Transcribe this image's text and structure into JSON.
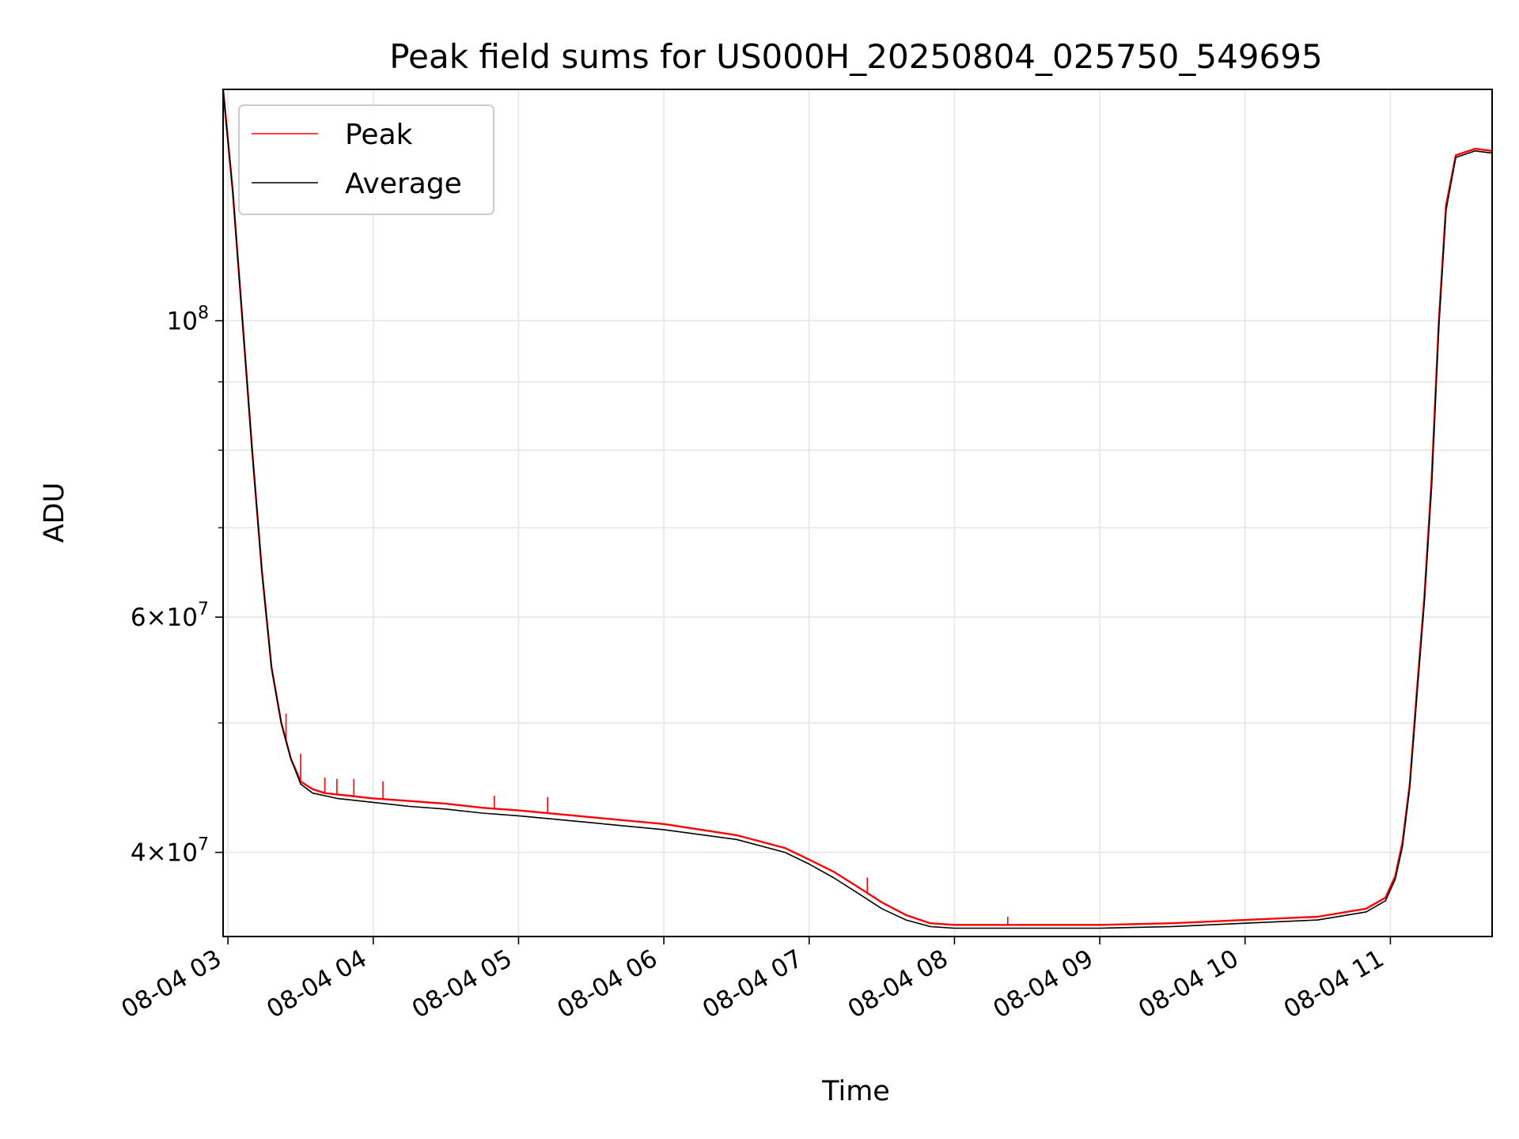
{
  "chart_data": {
    "type": "line",
    "title": "Peak field sums for US000H_20250804_025750_549695",
    "xlabel": "Time",
    "ylabel": "ADU",
    "yscale": "log",
    "grid": true,
    "legend_position": "top-left",
    "xlim": [
      "2025-08-04 02:58",
      "2025-08-04 11:42"
    ],
    "ylim": [
      34600000,
      149000000
    ],
    "x_ticks": [
      {
        "value": "2025-08-04 03:00",
        "label": "08-04 03"
      },
      {
        "value": "2025-08-04 04:00",
        "label": "08-04 04"
      },
      {
        "value": "2025-08-04 05:00",
        "label": "08-04 05"
      },
      {
        "value": "2025-08-04 06:00",
        "label": "08-04 06"
      },
      {
        "value": "2025-08-04 07:00",
        "label": "08-04 07"
      },
      {
        "value": "2025-08-04 08:00",
        "label": "08-04 08"
      },
      {
        "value": "2025-08-04 09:00",
        "label": "08-04 09"
      },
      {
        "value": "2025-08-04 10:00",
        "label": "08-04 10"
      },
      {
        "value": "2025-08-04 11:00",
        "label": "08-04 11"
      }
    ],
    "y_major_ticks": [
      {
        "value": 40000000,
        "mant": "4",
        "exp": "7"
      },
      {
        "value": 60000000,
        "mant": "6",
        "exp": "7"
      },
      {
        "value": 100000000,
        "mant": "",
        "exp": "8"
      }
    ],
    "y_minor_ticks": [
      50000000,
      70000000,
      80000000,
      90000000
    ],
    "series": [
      {
        "name": "Peak",
        "color": "#ff0000",
        "x": [
          "2025-08-04 02:58",
          "2025-08-04 03:02",
          "2025-08-04 03:06",
          "2025-08-04 03:10",
          "2025-08-04 03:14",
          "2025-08-04 03:18",
          "2025-08-04 03:22",
          "2025-08-04 03:26",
          "2025-08-04 03:30",
          "2025-08-04 03:35",
          "2025-08-04 03:40",
          "2025-08-04 03:45",
          "2025-08-04 03:50",
          "2025-08-04 04:00",
          "2025-08-04 04:15",
          "2025-08-04 04:30",
          "2025-08-04 04:45",
          "2025-08-04 05:00",
          "2025-08-04 05:30",
          "2025-08-04 06:00",
          "2025-08-04 06:30",
          "2025-08-04 06:50",
          "2025-08-04 07:00",
          "2025-08-04 07:10",
          "2025-08-04 07:20",
          "2025-08-04 07:30",
          "2025-08-04 07:40",
          "2025-08-04 07:50",
          "2025-08-04 08:00",
          "2025-08-04 08:30",
          "2025-08-04 09:00",
          "2025-08-04 09:30",
          "2025-08-04 10:00",
          "2025-08-04 10:30",
          "2025-08-04 10:50",
          "2025-08-04 10:58",
          "2025-08-04 11:02",
          "2025-08-04 11:05",
          "2025-08-04 11:08",
          "2025-08-04 11:11",
          "2025-08-04 11:14",
          "2025-08-04 11:17",
          "2025-08-04 11:20",
          "2025-08-04 11:23",
          "2025-08-04 11:27",
          "2025-08-04 11:35",
          "2025-08-04 11:42"
        ],
        "y": [
          149000000,
          125000000,
          100000000,
          80000000,
          65000000,
          55000000,
          50000000,
          47000000,
          45200000,
          44600000,
          44300000,
          44200000,
          44100000,
          43900000,
          43700000,
          43500000,
          43200000,
          43000000,
          42500000,
          42000000,
          41200000,
          40300000,
          39500000,
          38700000,
          37700000,
          36700000,
          35900000,
          35400000,
          35300000,
          35300000,
          35300000,
          35400000,
          35600000,
          35800000,
          36300000,
          37000000,
          38400000,
          40700000,
          45000000,
          53000000,
          62000000,
          76000000,
          100000000,
          122000000,
          133000000,
          134500000,
          134000000
        ],
        "spikes": [
          {
            "x": "2025-08-04 03:24",
            "y": 50800000
          },
          {
            "x": "2025-08-04 03:30",
            "y": 47400000
          },
          {
            "x": "2025-08-04 03:40",
            "y": 45500000
          },
          {
            "x": "2025-08-04 03:45",
            "y": 45400000
          },
          {
            "x": "2025-08-04 03:52",
            "y": 45400000
          },
          {
            "x": "2025-08-04 04:04",
            "y": 45200000
          },
          {
            "x": "2025-08-04 04:50",
            "y": 44100000
          },
          {
            "x": "2025-08-04 05:12",
            "y": 44000000
          },
          {
            "x": "2025-08-04 07:24",
            "y": 38300000
          },
          {
            "x": "2025-08-04 08:22",
            "y": 35800000
          }
        ]
      },
      {
        "name": "Average",
        "color": "#000000",
        "x": [
          "2025-08-04 02:58",
          "2025-08-04 03:02",
          "2025-08-04 03:06",
          "2025-08-04 03:10",
          "2025-08-04 03:14",
          "2025-08-04 03:18",
          "2025-08-04 03:22",
          "2025-08-04 03:26",
          "2025-08-04 03:30",
          "2025-08-04 03:35",
          "2025-08-04 03:40",
          "2025-08-04 03:45",
          "2025-08-04 03:50",
          "2025-08-04 04:00",
          "2025-08-04 04:15",
          "2025-08-04 04:30",
          "2025-08-04 04:45",
          "2025-08-04 05:00",
          "2025-08-04 05:30",
          "2025-08-04 06:00",
          "2025-08-04 06:30",
          "2025-08-04 06:50",
          "2025-08-04 07:00",
          "2025-08-04 07:10",
          "2025-08-04 07:20",
          "2025-08-04 07:30",
          "2025-08-04 07:40",
          "2025-08-04 07:50",
          "2025-08-04 08:00",
          "2025-08-04 08:30",
          "2025-08-04 09:00",
          "2025-08-04 09:30",
          "2025-08-04 10:00",
          "2025-08-04 10:30",
          "2025-08-04 10:50",
          "2025-08-04 10:58",
          "2025-08-04 11:02",
          "2025-08-04 11:05",
          "2025-08-04 11:08",
          "2025-08-04 11:11",
          "2025-08-04 11:14",
          "2025-08-04 11:17",
          "2025-08-04 11:20",
          "2025-08-04 11:23",
          "2025-08-04 11:27",
          "2025-08-04 11:35",
          "2025-08-04 11:42"
        ],
        "y": [
          149000000,
          125000000,
          100000000,
          80000000,
          65000000,
          55000000,
          50000000,
          47000000,
          45000000,
          44300000,
          44100000,
          43900000,
          43800000,
          43600000,
          43300000,
          43100000,
          42800000,
          42600000,
          42100000,
          41600000,
          40900000,
          40000000,
          39200000,
          38300000,
          37300000,
          36300000,
          35600000,
          35200000,
          35100000,
          35100000,
          35100000,
          35200000,
          35400000,
          35600000,
          36100000,
          36800000,
          38200000,
          40400000,
          44700000,
          52500000,
          61500000,
          75000000,
          99000000,
          121000000,
          132500000,
          134000000,
          133500000
        ]
      }
    ]
  }
}
